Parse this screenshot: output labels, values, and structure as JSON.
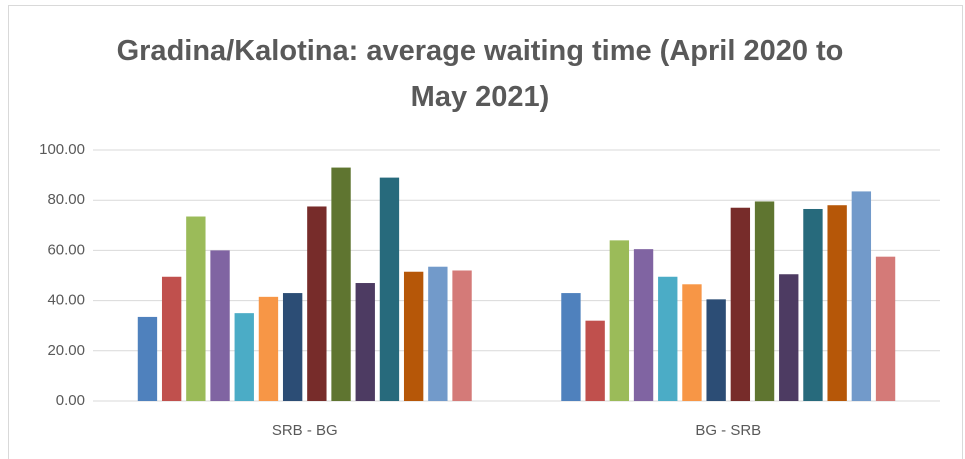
{
  "chart_data": {
    "type": "bar",
    "title": "Gradina/Kalotina: average waiting time (April 2020 to  May 2021)",
    "categories": [
      "SRB - BG",
      "BG - SRB"
    ],
    "series": [
      {
        "color": "#4f81bd",
        "values": [
          33.5,
          43
        ]
      },
      {
        "color": "#c0504d",
        "values": [
          49.5,
          32
        ]
      },
      {
        "color": "#9bbb59",
        "values": [
          73.5,
          64
        ]
      },
      {
        "color": "#8064a2",
        "values": [
          60,
          60.5
        ]
      },
      {
        "color": "#4bacc6",
        "values": [
          35,
          49.5
        ]
      },
      {
        "color": "#f79646",
        "values": [
          41.5,
          46.5
        ]
      },
      {
        "color": "#2c4d75",
        "values": [
          43,
          40.5
        ]
      },
      {
        "color": "#772c2a",
        "values": [
          77.5,
          77
        ]
      },
      {
        "color": "#5f7530",
        "values": [
          93,
          79.5
        ]
      },
      {
        "color": "#4d3b62",
        "values": [
          47,
          50.5
        ]
      },
      {
        "color": "#276a7c",
        "values": [
          89,
          76.5
        ]
      },
      {
        "color": "#b65708",
        "values": [
          51.5,
          78
        ]
      },
      {
        "color": "#729aca",
        "values": [
          53.5,
          83.5
        ]
      },
      {
        "color": "#d47a78",
        "values": [
          52,
          57.5
        ]
      }
    ],
    "ylim": [
      0,
      100
    ],
    "yticks": [
      {
        "value": 0,
        "label": "0.00"
      },
      {
        "value": 20,
        "label": "20.00"
      },
      {
        "value": 40,
        "label": "40.00"
      },
      {
        "value": 60,
        "label": "60.00"
      },
      {
        "value": 80,
        "label": "80.00"
      },
      {
        "value": 100,
        "label": "100.00"
      }
    ],
    "grid": true
  }
}
